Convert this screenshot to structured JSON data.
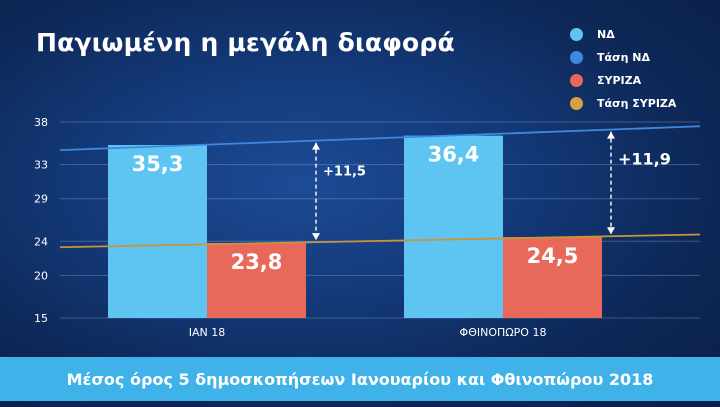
{
  "title": "Παγιωμένη η μεγάλη διαφορά",
  "footer": "Μέσος όρος 5 δημοσκοπήσεων Ιανουαρίου και Φθινοπώρου 2018",
  "colors": {
    "nd": "#5ec4f2",
    "nd_trend": "#3f88e0",
    "syriza": "#e8685a",
    "syriza_trend": "#c9953a",
    "footer": "#3fb2ea"
  },
  "legend": [
    {
      "label": "ΝΔ",
      "color": "#5ec4f2"
    },
    {
      "label": "Τάση ΝΔ",
      "color": "#3f88e0"
    },
    {
      "label": "ΣΥΡΙΖΑ",
      "color": "#e8685a"
    },
    {
      "label": "Τάση ΣΥΡΙΖΑ",
      "color": "#d8a13f"
    }
  ],
  "chart_data": {
    "type": "bar",
    "categories": [
      "ΙΑΝ 18",
      "ΦΘΙΝΟΠΩΡΟ 18"
    ],
    "series": [
      {
        "name": "ΝΔ",
        "values": [
          35.3,
          36.4
        ],
        "labels": [
          "35,3",
          "36,4"
        ],
        "color": "#5ec4f2"
      },
      {
        "name": "ΣΥΡΙΖΑ",
        "values": [
          23.8,
          24.5
        ],
        "labels": [
          "23,8",
          "24,5"
        ],
        "color": "#e8685a"
      }
    ],
    "trend_lines": [
      {
        "name": "Τάση ΝΔ",
        "start": 34.7,
        "end": 37.5,
        "color": "#3f88e0"
      },
      {
        "name": "Τάση ΣΥΡΙΖΑ",
        "start": 23.3,
        "end": 24.8,
        "color": "#c9953a"
      }
    ],
    "differences": [
      {
        "label": "+11,5",
        "value": 11.5
      },
      {
        "label": "+11,9",
        "value": 11.9
      }
    ],
    "yticks": [
      15,
      20,
      24,
      29,
      33,
      38
    ],
    "ylim": [
      15,
      38
    ],
    "grid": true,
    "legend_position": "top-right"
  }
}
